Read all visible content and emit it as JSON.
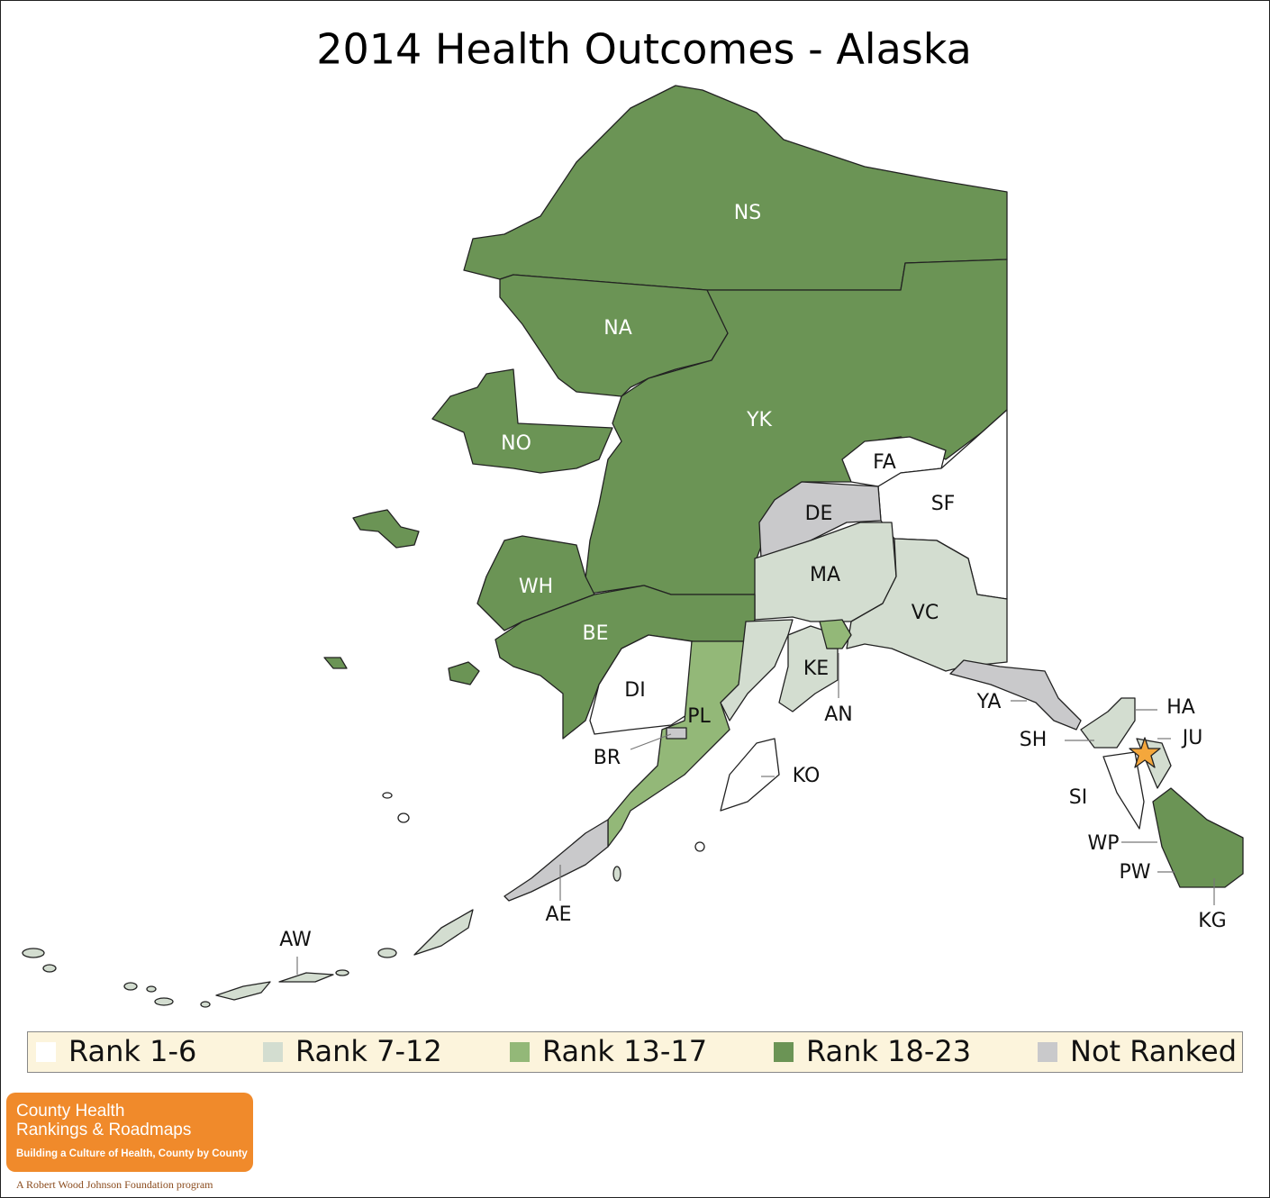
{
  "title": "2014 Health Outcomes - Alaska",
  "regions": [
    {
      "label": "NS"
    },
    {
      "label": "NA"
    },
    {
      "label": "YK"
    },
    {
      "label": "NO"
    },
    {
      "label": "FA"
    },
    {
      "label": "SF"
    },
    {
      "label": "DE"
    },
    {
      "label": "MA"
    },
    {
      "label": "VC"
    },
    {
      "label": "WH"
    },
    {
      "label": "BE"
    },
    {
      "label": "DI"
    },
    {
      "label": "KE"
    },
    {
      "label": "AN"
    },
    {
      "label": "PL"
    },
    {
      "label": "BR"
    },
    {
      "label": "KO"
    },
    {
      "label": "YA"
    },
    {
      "label": "HA"
    },
    {
      "label": "SH"
    },
    {
      "label": "JU"
    },
    {
      "label": "SI"
    },
    {
      "label": "WP"
    },
    {
      "label": "PW"
    },
    {
      "label": "KG"
    },
    {
      "label": "AE"
    },
    {
      "label": "AW"
    }
  ],
  "legend": [
    {
      "label": "Rank 1-6",
      "color": "#ffffff"
    },
    {
      "label": "Rank 7-12",
      "color": "#d3ddd0"
    },
    {
      "label": "Rank 13-17",
      "color": "#93b878"
    },
    {
      "label": "Rank 18-23",
      "color": "#6b9455"
    },
    {
      "label": "Not Ranked",
      "color": "#c9c9cb"
    }
  ],
  "logo": {
    "line1": "County Health",
    "line2": "Rankings & Roadmaps",
    "tagline": "Building a Culture of Health, County by County",
    "program": "A Robert Wood Johnson Foundation program"
  }
}
